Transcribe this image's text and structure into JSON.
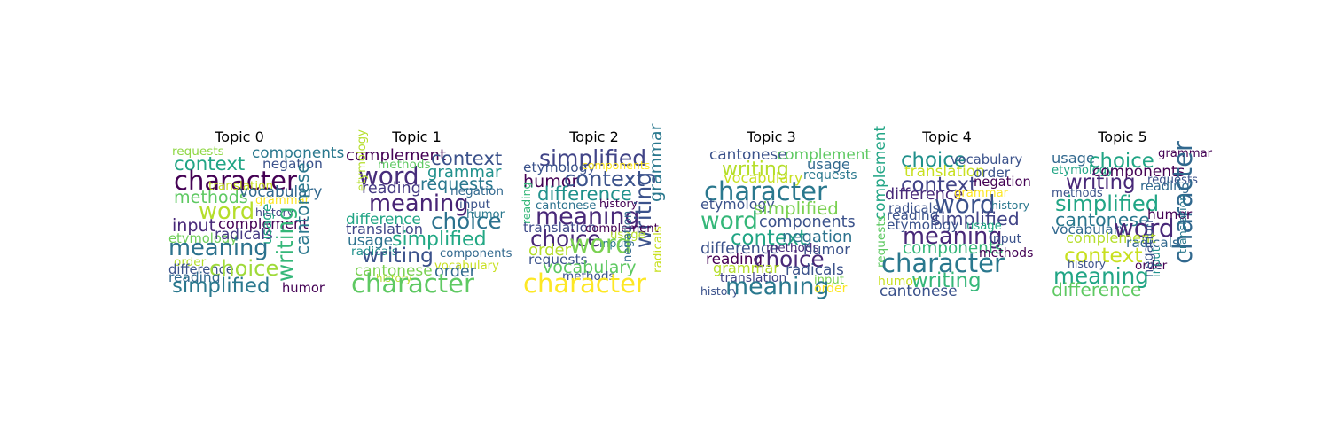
{
  "chart_data": [
    {
      "type": "wordcloud",
      "title": "Topic 0",
      "words": [
        {
          "text": "requests",
          "weight": 0.3,
          "color": "#8fd744"
        },
        {
          "text": "components",
          "weight": 0.45,
          "color": "#2a788e"
        },
        {
          "text": "context",
          "weight": 0.65,
          "color": "#21a585"
        },
        {
          "text": "negation",
          "weight": 0.38,
          "color": "#3b528b"
        },
        {
          "text": "character",
          "weight": 1.0,
          "color": "#440154"
        },
        {
          "text": "translation",
          "weight": 0.3,
          "color": "#c8e020"
        },
        {
          "text": "methods",
          "weight": 0.55,
          "color": "#5ec962"
        },
        {
          "text": "vocabulary",
          "weight": 0.45,
          "color": "#31688e"
        },
        {
          "text": "word",
          "weight": 0.85,
          "color": "#b5de2b"
        },
        {
          "text": "grammar",
          "weight": 0.28,
          "color": "#fde725"
        },
        {
          "text": "history",
          "weight": 0.25,
          "color": "#414487"
        },
        {
          "text": "input",
          "weight": 0.55,
          "color": "#482878"
        },
        {
          "text": "complement",
          "weight": 0.42,
          "color": "#440154"
        },
        {
          "text": "writing",
          "weight": 0.8,
          "color": "#35b779"
        },
        {
          "text": "cantonese",
          "weight": 0.6,
          "color": "#2a788e"
        },
        {
          "text": "etymology",
          "weight": 0.35,
          "color": "#6ece58"
        },
        {
          "text": "radicals",
          "weight": 0.45,
          "color": "#443983"
        },
        {
          "text": "usage",
          "weight": 0.38,
          "color": "#22a884"
        },
        {
          "text": "meaning",
          "weight": 0.85,
          "color": "#2c728e"
        },
        {
          "text": "order",
          "weight": 0.3,
          "color": "#b5de2b"
        },
        {
          "text": "difference",
          "weight": 0.35,
          "color": "#3b528b"
        },
        {
          "text": "choice",
          "weight": 0.78,
          "color": "#9fda3a"
        },
        {
          "text": "reading",
          "weight": 0.38,
          "color": "#31688e"
        },
        {
          "text": "simplified",
          "weight": 0.72,
          "color": "#2a788e"
        },
        {
          "text": "humor",
          "weight": 0.35,
          "color": "#440154"
        }
      ]
    },
    {
      "type": "wordcloud",
      "title": "Topic 1",
      "words": [
        {
          "text": "complement",
          "weight": 0.5,
          "color": "#440154"
        },
        {
          "text": "context",
          "weight": 0.65,
          "color": "#3b528b"
        },
        {
          "text": "word",
          "weight": 0.95,
          "color": "#472d7b"
        },
        {
          "text": "methods",
          "weight": 0.3,
          "color": "#5ec962"
        },
        {
          "text": "grammar",
          "weight": 0.5,
          "color": "#21918c"
        },
        {
          "text": "etymology",
          "weight": 0.28,
          "color": "#b5de2b"
        },
        {
          "text": "requests",
          "weight": 0.55,
          "color": "#2a788e"
        },
        {
          "text": "reading",
          "weight": 0.48,
          "color": "#443983"
        },
        {
          "text": "negation",
          "weight": 0.3,
          "color": "#31688e"
        },
        {
          "text": "meaning",
          "weight": 0.85,
          "color": "#482475"
        },
        {
          "text": "input",
          "weight": 0.3,
          "color": "#3b528b"
        },
        {
          "text": "choice",
          "weight": 0.8,
          "color": "#2c728e"
        },
        {
          "text": "difference",
          "weight": 0.45,
          "color": "#21a585"
        },
        {
          "text": "humor",
          "weight": 0.28,
          "color": "#2a788e"
        },
        {
          "text": "translation",
          "weight": 0.42,
          "color": "#404688"
        },
        {
          "text": "usage",
          "weight": 0.45,
          "color": "#2c728e"
        },
        {
          "text": "simplified",
          "weight": 0.68,
          "color": "#22a884"
        },
        {
          "text": "radicals",
          "weight": 0.3,
          "color": "#21918c"
        },
        {
          "text": "components",
          "weight": 0.28,
          "color": "#31688e"
        },
        {
          "text": "writing",
          "weight": 0.75,
          "color": "#3b528b"
        },
        {
          "text": "vocabulary",
          "weight": 0.28,
          "color": "#c8e020"
        },
        {
          "text": "cantonese",
          "weight": 0.45,
          "color": "#7ad151"
        },
        {
          "text": "order",
          "weight": 0.48,
          "color": "#31688e"
        },
        {
          "text": "history",
          "weight": 0.22,
          "color": "#b5de2b"
        },
        {
          "text": "character",
          "weight": 1.0,
          "color": "#5ec962"
        }
      ]
    },
    {
      "type": "wordcloud",
      "title": "Topic 2",
      "words": [
        {
          "text": "simplified",
          "weight": 0.82,
          "color": "#414487"
        },
        {
          "text": "etymology",
          "weight": 0.38,
          "color": "#3b528b"
        },
        {
          "text": "components",
          "weight": 0.25,
          "color": "#fde725"
        },
        {
          "text": "humor",
          "weight": 0.55,
          "color": "#440154"
        },
        {
          "text": "context",
          "weight": 0.78,
          "color": "#3b528b"
        },
        {
          "text": "grammar",
          "weight": 0.55,
          "color": "#2a788e"
        },
        {
          "text": "difference",
          "weight": 0.65,
          "color": "#21918c"
        },
        {
          "text": "cantonese",
          "weight": 0.28,
          "color": "#2c728e"
        },
        {
          "text": "reading",
          "weight": 0.25,
          "color": "#35b779"
        },
        {
          "text": "history",
          "weight": 0.25,
          "color": "#440154"
        },
        {
          "text": "meaning",
          "weight": 0.9,
          "color": "#482878"
        },
        {
          "text": "writing",
          "weight": 0.82,
          "color": "#3b528b"
        },
        {
          "text": "translation",
          "weight": 0.38,
          "color": "#3e4a89"
        },
        {
          "text": "complement",
          "weight": 0.28,
          "color": "#440154"
        },
        {
          "text": "choice",
          "weight": 0.8,
          "color": "#482878"
        },
        {
          "text": "usage",
          "weight": 0.28,
          "color": "#b5de2b"
        },
        {
          "text": "input",
          "weight": 0.25,
          "color": "#2a788e"
        },
        {
          "text": "word",
          "weight": 0.98,
          "color": "#7ad151"
        },
        {
          "text": "order",
          "weight": 0.5,
          "color": "#b5de2b"
        },
        {
          "text": "requests",
          "weight": 0.38,
          "color": "#3b528b"
        },
        {
          "text": "negation",
          "weight": 0.28,
          "color": "#31688e"
        },
        {
          "text": "radicals",
          "weight": 0.3,
          "color": "#c8e020"
        },
        {
          "text": "vocabulary",
          "weight": 0.55,
          "color": "#5ec962"
        },
        {
          "text": "methods",
          "weight": 0.3,
          "color": "#3b528b"
        },
        {
          "text": "character",
          "weight": 1.0,
          "color": "#fde725"
        }
      ]
    },
    {
      "type": "wordcloud",
      "title": "Topic 3",
      "words": [
        {
          "text": "cantonese",
          "weight": 0.45,
          "color": "#3b528b"
        },
        {
          "text": "complement",
          "weight": 0.45,
          "color": "#5ec962"
        },
        {
          "text": "writing",
          "weight": 0.68,
          "color": "#b5de2b"
        },
        {
          "text": "usage",
          "weight": 0.42,
          "color": "#31688e"
        },
        {
          "text": "vocabulary",
          "weight": 0.42,
          "color": "#c8e020"
        },
        {
          "text": "requests",
          "weight": 0.32,
          "color": "#2a788e"
        },
        {
          "text": "character",
          "weight": 1.0,
          "color": "#2a788e"
        },
        {
          "text": "etymology",
          "weight": 0.4,
          "color": "#3b528b"
        },
        {
          "text": "simplified",
          "weight": 0.58,
          "color": "#7ad151"
        },
        {
          "text": "word",
          "weight": 0.88,
          "color": "#35b779"
        },
        {
          "text": "components",
          "weight": 0.48,
          "color": "#3b528b"
        },
        {
          "text": "context",
          "weight": 0.72,
          "color": "#21a585"
        },
        {
          "text": "negation",
          "weight": 0.5,
          "color": "#2c728e"
        },
        {
          "text": "difference",
          "weight": 0.48,
          "color": "#3b528b"
        },
        {
          "text": "methods",
          "weight": 0.3,
          "color": "#472d7b"
        },
        {
          "text": "humor",
          "weight": 0.42,
          "color": "#3b528b"
        },
        {
          "text": "reading",
          "weight": 0.45,
          "color": "#440154"
        },
        {
          "text": "choice",
          "weight": 0.8,
          "color": "#482878"
        },
        {
          "text": "grammar",
          "weight": 0.42,
          "color": "#b5de2b"
        },
        {
          "text": "radicals",
          "weight": 0.45,
          "color": "#3b528b"
        },
        {
          "text": "translation",
          "weight": 0.32,
          "color": "#414487"
        },
        {
          "text": "input",
          "weight": 0.28,
          "color": "#7ad151"
        },
        {
          "text": "history",
          "weight": 0.25,
          "color": "#3b528b"
        },
        {
          "text": "meaning",
          "weight": 0.9,
          "color": "#2a788e"
        },
        {
          "text": "order",
          "weight": 0.32,
          "color": "#fde725"
        }
      ]
    },
    {
      "type": "wordcloud",
      "title": "Topic 4",
      "words": [
        {
          "text": "complement",
          "weight": 0.45,
          "color": "#21a585"
        },
        {
          "text": "choice",
          "weight": 0.72,
          "color": "#21918c"
        },
        {
          "text": "vocabulary",
          "weight": 0.35,
          "color": "#3b528b"
        },
        {
          "text": "translation",
          "weight": 0.45,
          "color": "#c8e020"
        },
        {
          "text": "order",
          "weight": 0.38,
          "color": "#3b528b"
        },
        {
          "text": "context",
          "weight": 0.72,
          "color": "#414487"
        },
        {
          "text": "negation",
          "weight": 0.35,
          "color": "#440154"
        },
        {
          "text": "difference",
          "weight": 0.48,
          "color": "#482878"
        },
        {
          "text": "grammar",
          "weight": 0.28,
          "color": "#fde725"
        },
        {
          "text": "word",
          "weight": 0.95,
          "color": "#3b528b"
        },
        {
          "text": "radicals",
          "weight": 0.35,
          "color": "#3b528b"
        },
        {
          "text": "history",
          "weight": 0.25,
          "color": "#2a788e"
        },
        {
          "text": "reading",
          "weight": 0.38,
          "color": "#3b528b"
        },
        {
          "text": "simplified",
          "weight": 0.62,
          "color": "#414487"
        },
        {
          "text": "etymology",
          "weight": 0.38,
          "color": "#3b528b"
        },
        {
          "text": "usage",
          "weight": 0.28,
          "color": "#22a884"
        },
        {
          "text": "requests",
          "weight": 0.3,
          "color": "#5ec962"
        },
        {
          "text": "meaning",
          "weight": 0.85,
          "color": "#482878"
        },
        {
          "text": "input",
          "weight": 0.32,
          "color": "#3b528b"
        },
        {
          "text": "components",
          "weight": 0.52,
          "color": "#35b779"
        },
        {
          "text": "methods",
          "weight": 0.32,
          "color": "#440154"
        },
        {
          "text": "character",
          "weight": 1.0,
          "color": "#2a788e"
        },
        {
          "text": "humor",
          "weight": 0.32,
          "color": "#c8e020"
        },
        {
          "text": "writing",
          "weight": 0.72,
          "color": "#35b779"
        },
        {
          "text": "cantonese",
          "weight": 0.45,
          "color": "#3b528b"
        }
      ]
    },
    {
      "type": "wordcloud",
      "title": "Topic 5",
      "words": [
        {
          "text": "usage",
          "weight": 0.42,
          "color": "#31688e"
        },
        {
          "text": "choice",
          "weight": 0.72,
          "color": "#21a585"
        },
        {
          "text": "grammar",
          "weight": 0.28,
          "color": "#440154"
        },
        {
          "text": "etymology",
          "weight": 0.28,
          "color": "#21a585"
        },
        {
          "text": "components",
          "weight": 0.45,
          "color": "#440154"
        },
        {
          "text": "requests",
          "weight": 0.28,
          "color": "#3b528b"
        },
        {
          "text": "writing",
          "weight": 0.72,
          "color": "#482878"
        },
        {
          "text": "reading",
          "weight": 0.35,
          "color": "#31688e"
        },
        {
          "text": "methods",
          "weight": 0.28,
          "color": "#3b528b"
        },
        {
          "text": "simplified",
          "weight": 0.78,
          "color": "#21a585"
        },
        {
          "text": "character",
          "weight": 1.0,
          "color": "#31688e"
        },
        {
          "text": "cantonese",
          "weight": 0.62,
          "color": "#2a788e"
        },
        {
          "text": "humor",
          "weight": 0.38,
          "color": "#440154"
        },
        {
          "text": "vocabulary",
          "weight": 0.38,
          "color": "#31688e"
        },
        {
          "text": "word",
          "weight": 0.95,
          "color": "#482878"
        },
        {
          "text": "translation",
          "weight": 0.25,
          "color": "#2a788e"
        },
        {
          "text": "complement",
          "weight": 0.42,
          "color": "#b5de2b"
        },
        {
          "text": "radicals",
          "weight": 0.38,
          "color": "#31688e"
        },
        {
          "text": "context",
          "weight": 0.75,
          "color": "#c8e020"
        },
        {
          "text": "history",
          "weight": 0.25,
          "color": "#3b528b"
        },
        {
          "text": "order",
          "weight": 0.3,
          "color": "#440154"
        },
        {
          "text": "negation",
          "weight": 0.35,
          "color": "#3b528b"
        },
        {
          "text": "input",
          "weight": 0.28,
          "color": "#21918c"
        },
        {
          "text": "meaning",
          "weight": 0.8,
          "color": "#21a585"
        },
        {
          "text": "difference",
          "weight": 0.6,
          "color": "#5ec962"
        }
      ]
    }
  ]
}
